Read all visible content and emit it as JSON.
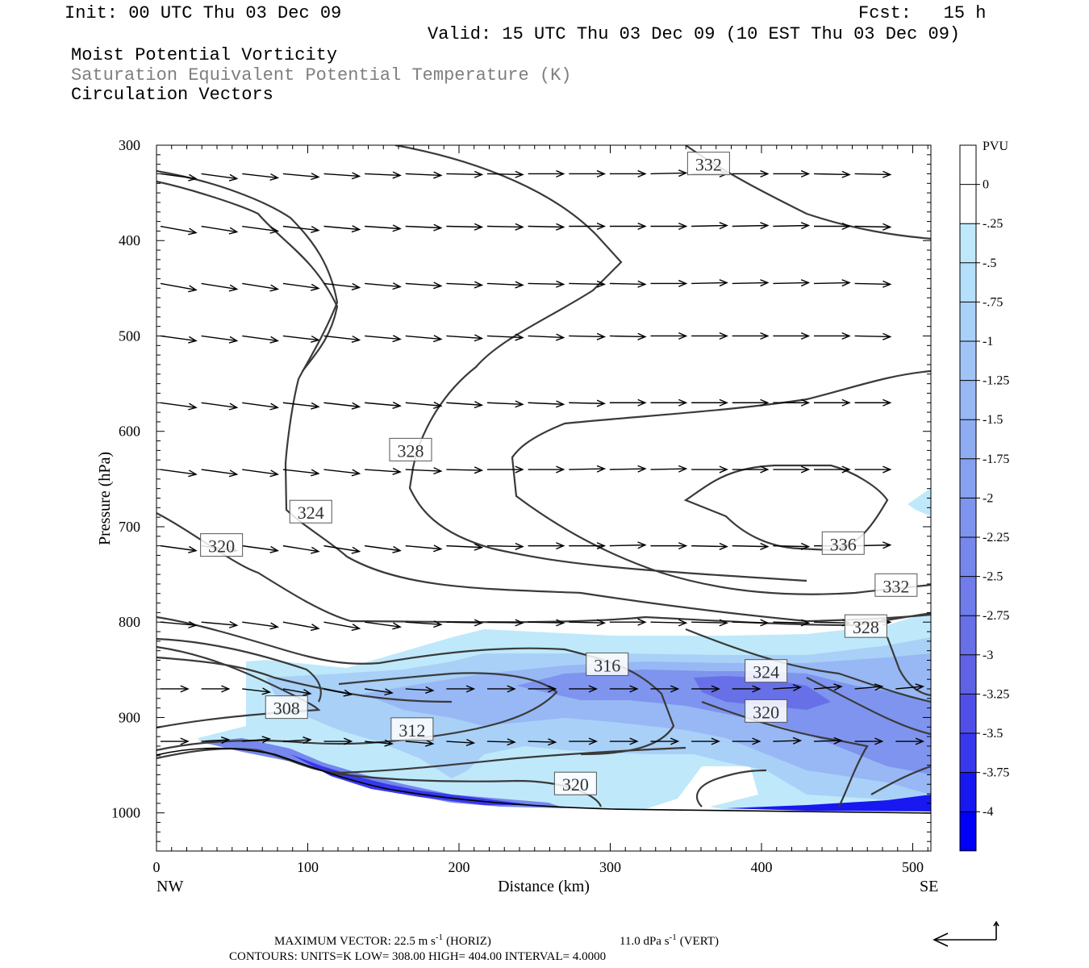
{
  "header": {
    "init": "Init: 00 UTC Thu 03 Dec 09",
    "fcst": "Fcst:   15 h",
    "valid": "Valid: 15 UTC Thu 03 Dec 09 (10 EST Thu 03 Dec 09)",
    "field1": "Moist Potential Vorticity",
    "field2": "Saturation Equivalent Potential Temperature (K)",
    "field3": "Circulation Vectors",
    "field2_color": "#7f7f7f"
  },
  "chart_data": {
    "type": "cross-section",
    "xlabel": "Distance (km)",
    "ylabel": "Pressure (hPa)",
    "x_ticks": [
      0,
      100,
      200,
      300,
      400,
      500
    ],
    "x_tick_labels": [
      "0",
      "100",
      "200",
      "300",
      "400",
      "500"
    ],
    "y_ticks": [
      300,
      400,
      500,
      600,
      700,
      800,
      900,
      1000
    ],
    "y_tick_labels": [
      "300",
      "400",
      "500",
      "600",
      "700",
      "800",
      "900",
      "1000"
    ],
    "xlim": [
      0,
      512
    ],
    "ylim": [
      1040,
      300
    ],
    "left_end_label": "NW",
    "right_end_label": "SE",
    "colorbar": {
      "title": "PVU",
      "levels": [
        "0",
        "-.25",
        "-.5",
        "-.75",
        "-1",
        "-1.25",
        "-1.5",
        "-1.75",
        "-2",
        "-2.25",
        "-2.5",
        "-2.75",
        "-3",
        "-3.25",
        "-3.5",
        "-3.75",
        "-4"
      ],
      "colors": [
        "#ffffff",
        "#ffffff",
        "#bfe9fb",
        "#b5e0fb",
        "#a9d0f7",
        "#a0c4f6",
        "#97b8f4",
        "#8eacf2",
        "#86a1f0",
        "#7e94ee",
        "#7688ec",
        "#6f7cea",
        "#6870e8",
        "#6062e6",
        "#5050e8",
        "#3838ec",
        "#1818f0",
        "#0000f8"
      ]
    },
    "contour_labels": [
      {
        "text": "332",
        "x": 365,
        "p": 320
      },
      {
        "text": "328",
        "x": 168,
        "p": 620
      },
      {
        "text": "324",
        "x": 102,
        "p": 685
      },
      {
        "text": "320",
        "x": 43,
        "p": 720
      },
      {
        "text": "336",
        "x": 454,
        "p": 718
      },
      {
        "text": "332",
        "x": 489,
        "p": 762
      },
      {
        "text": "328",
        "x": 469,
        "p": 805
      },
      {
        "text": "316",
        "x": 298,
        "p": 845
      },
      {
        "text": "324",
        "x": 403,
        "p": 852
      },
      {
        "text": "320",
        "x": 403,
        "p": 894
      },
      {
        "text": "308",
        "x": 86,
        "p": 890
      },
      {
        "text": "312",
        "x": 169,
        "p": 913
      },
      {
        "text": "320",
        "x": 277,
        "p": 970
      }
    ],
    "footer": {
      "max_vector": "MAXIMUM VECTOR:  22.5 m s",
      "horiz": "(HORIZ)",
      "vert_val": "11.0 dPa s",
      "vert": "(VERT)",
      "exp": "-1",
      "contours": "CONTOURS:  UNITS=K  LOW=  308.00        HIGH=  404.00        INTERVAL=    4.0000"
    }
  }
}
